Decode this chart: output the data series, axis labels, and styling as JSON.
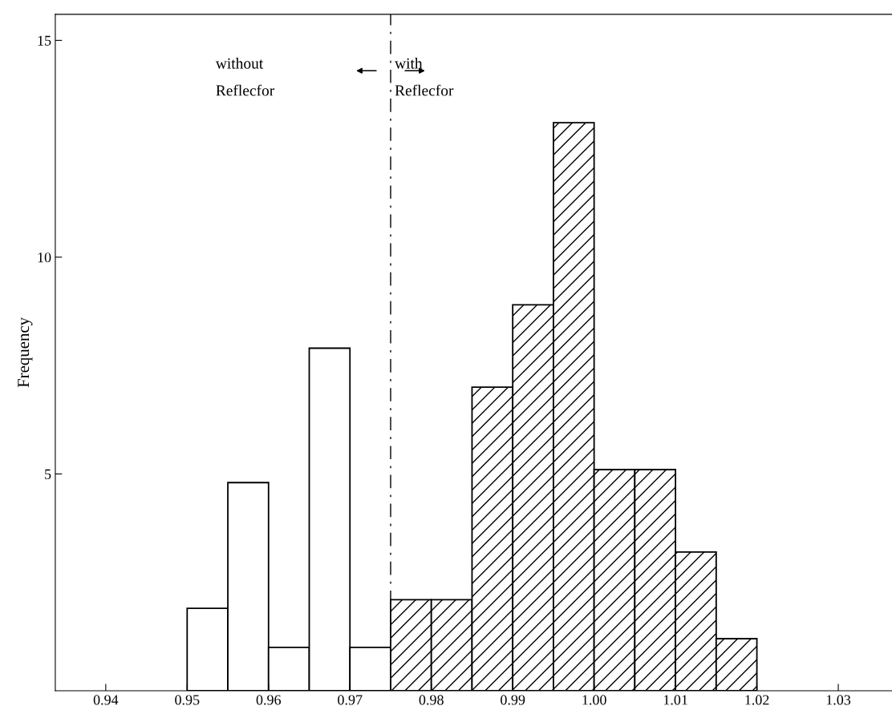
{
  "chart_data": {
    "type": "histogram",
    "ylabel": "Frequency",
    "bins": [
      0.95,
      0.955,
      0.96,
      0.965,
      0.97,
      0.975,
      0.98,
      0.985,
      0.99,
      0.995,
      1.0,
      1.005,
      1.01,
      1.015,
      1.02
    ],
    "series": [
      {
        "color": "#000000",
        "values": [
          1.9,
          4.8,
          1.0,
          7.9,
          1.0,
          null,
          null,
          null,
          null,
          null,
          null,
          null,
          null,
          null
        ]
      },
      {
        "color": "#000000",
        "values": [
          null,
          null,
          null,
          null,
          null,
          2.1,
          2.1,
          7.0,
          8.9,
          13.1,
          5.1,
          5.1,
          3.2,
          1.2
        ]
      }
    ],
    "xlim": [
      0.9338,
      1.0366
    ],
    "ylim": [
      0,
      15.6
    ],
    "xticks": [
      0.94,
      0.95,
      0.96,
      0.97,
      0.98,
      0.99,
      {
        "value": 1.0,
        "label": "1.00"
      },
      1.01,
      1.02,
      1.03
    ],
    "yticks": [
      5,
      10,
      15
    ],
    "ref_lines": [
      {
        "axis": "x",
        "value": 0.975,
        "line_style": "dashed",
        "color": "#000000"
      }
    ],
    "annotations": [
      "without\nReflecfor",
      "with\nReflecfor"
    ],
    "grid": false,
    "legend": false
  }
}
